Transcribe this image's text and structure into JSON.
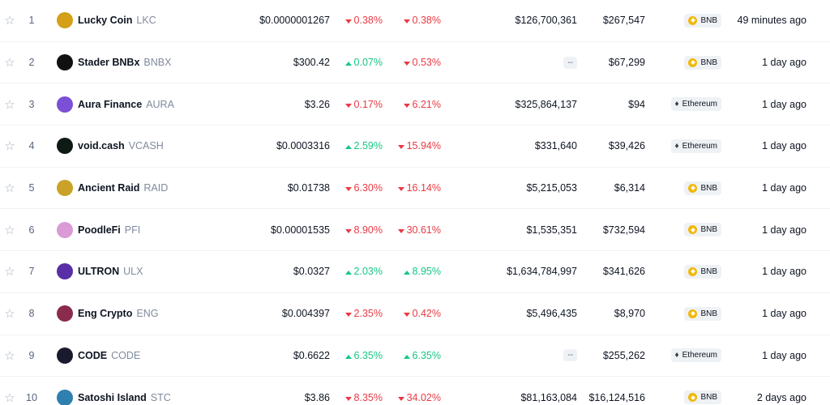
{
  "rows": [
    {
      "rank": "1",
      "name": "Lucky Coin",
      "symbol": "LKC",
      "icon": "lucky-coin-icon",
      "icon_color": "#d4a017",
      "price": "$0.0000001267",
      "ch1": "0.38%",
      "ch1_dir": "down",
      "ch24": "0.38%",
      "ch24_dir": "down",
      "volume": "$126,700,361",
      "liquidity": "$267,547",
      "chain": "BNB",
      "added": "49 minutes ago"
    },
    {
      "rank": "2",
      "name": "Stader BNBx",
      "symbol": "BNBX",
      "icon": "stader-icon",
      "icon_color": "#111111",
      "price": "$300.42",
      "ch1": "0.07%",
      "ch1_dir": "up",
      "ch24": "0.53%",
      "ch24_dir": "down",
      "volume": "--",
      "liquidity": "$67,299",
      "chain": "BNB",
      "added": "1 day ago"
    },
    {
      "rank": "3",
      "name": "Aura Finance",
      "symbol": "AURA",
      "icon": "aura-icon",
      "icon_color": "#7b4fd6",
      "price": "$3.26",
      "ch1": "0.17%",
      "ch1_dir": "down",
      "ch24": "6.21%",
      "ch24_dir": "down",
      "volume": "$325,864,137",
      "liquidity": "$94",
      "chain": "Ethereum",
      "added": "1 day ago"
    },
    {
      "rank": "4",
      "name": "void.cash",
      "symbol": "VCASH",
      "icon": "void-cash-icon",
      "icon_color": "#0e1a14",
      "price": "$0.0003316",
      "ch1": "2.59%",
      "ch1_dir": "up",
      "ch24": "15.94%",
      "ch24_dir": "down",
      "volume": "$331,640",
      "liquidity": "$39,426",
      "chain": "Ethereum",
      "added": "1 day ago"
    },
    {
      "rank": "5",
      "name": "Ancient Raid",
      "symbol": "RAID",
      "icon": "ancient-raid-icon",
      "icon_color": "#c9a227",
      "price": "$0.01738",
      "ch1": "6.30%",
      "ch1_dir": "down",
      "ch24": "16.14%",
      "ch24_dir": "down",
      "volume": "$5,215,053",
      "liquidity": "$6,314",
      "chain": "BNB",
      "added": "1 day ago"
    },
    {
      "rank": "6",
      "name": "PoodleFi",
      "symbol": "PFI",
      "icon": "poodlefi-icon",
      "icon_color": "#d99ad6",
      "price": "$0.00001535",
      "ch1": "8.90%",
      "ch1_dir": "down",
      "ch24": "30.61%",
      "ch24_dir": "down",
      "volume": "$1,535,351",
      "liquidity": "$732,594",
      "chain": "BNB",
      "added": "1 day ago"
    },
    {
      "rank": "7",
      "name": "ULTRON",
      "symbol": "ULX",
      "icon": "ultron-icon",
      "icon_color": "#5a2ea6",
      "price": "$0.0327",
      "ch1": "2.03%",
      "ch1_dir": "up",
      "ch24": "8.95%",
      "ch24_dir": "up",
      "volume": "$1,634,784,997",
      "liquidity": "$341,626",
      "chain": "BNB",
      "added": "1 day ago"
    },
    {
      "rank": "8",
      "name": "Eng Crypto",
      "symbol": "ENG",
      "icon": "eng-crypto-icon",
      "icon_color": "#8a2b4e",
      "price": "$0.004397",
      "ch1": "2.35%",
      "ch1_dir": "down",
      "ch24": "0.42%",
      "ch24_dir": "down",
      "volume": "$5,496,435",
      "liquidity": "$8,970",
      "chain": "BNB",
      "added": "1 day ago"
    },
    {
      "rank": "9",
      "name": "CODE",
      "symbol": "CODE",
      "icon": "code-icon",
      "icon_color": "#1a1a2e",
      "price": "$0.6622",
      "ch1": "6.35%",
      "ch1_dir": "up",
      "ch24": "6.35%",
      "ch24_dir": "up",
      "volume": "--",
      "liquidity": "$255,262",
      "chain": "Ethereum",
      "added": "1 day ago"
    },
    {
      "rank": "10",
      "name": "Satoshi Island",
      "symbol": "STC",
      "icon": "satoshi-island-icon",
      "icon_color": "#2f7fb0",
      "price": "$3.86",
      "ch1": "8.35%",
      "ch1_dir": "down",
      "ch24": "34.02%",
      "ch24_dir": "down",
      "volume": "$81,163,084",
      "liquidity": "$16,124,516",
      "chain": "BNB",
      "added": "2 days ago"
    }
  ]
}
